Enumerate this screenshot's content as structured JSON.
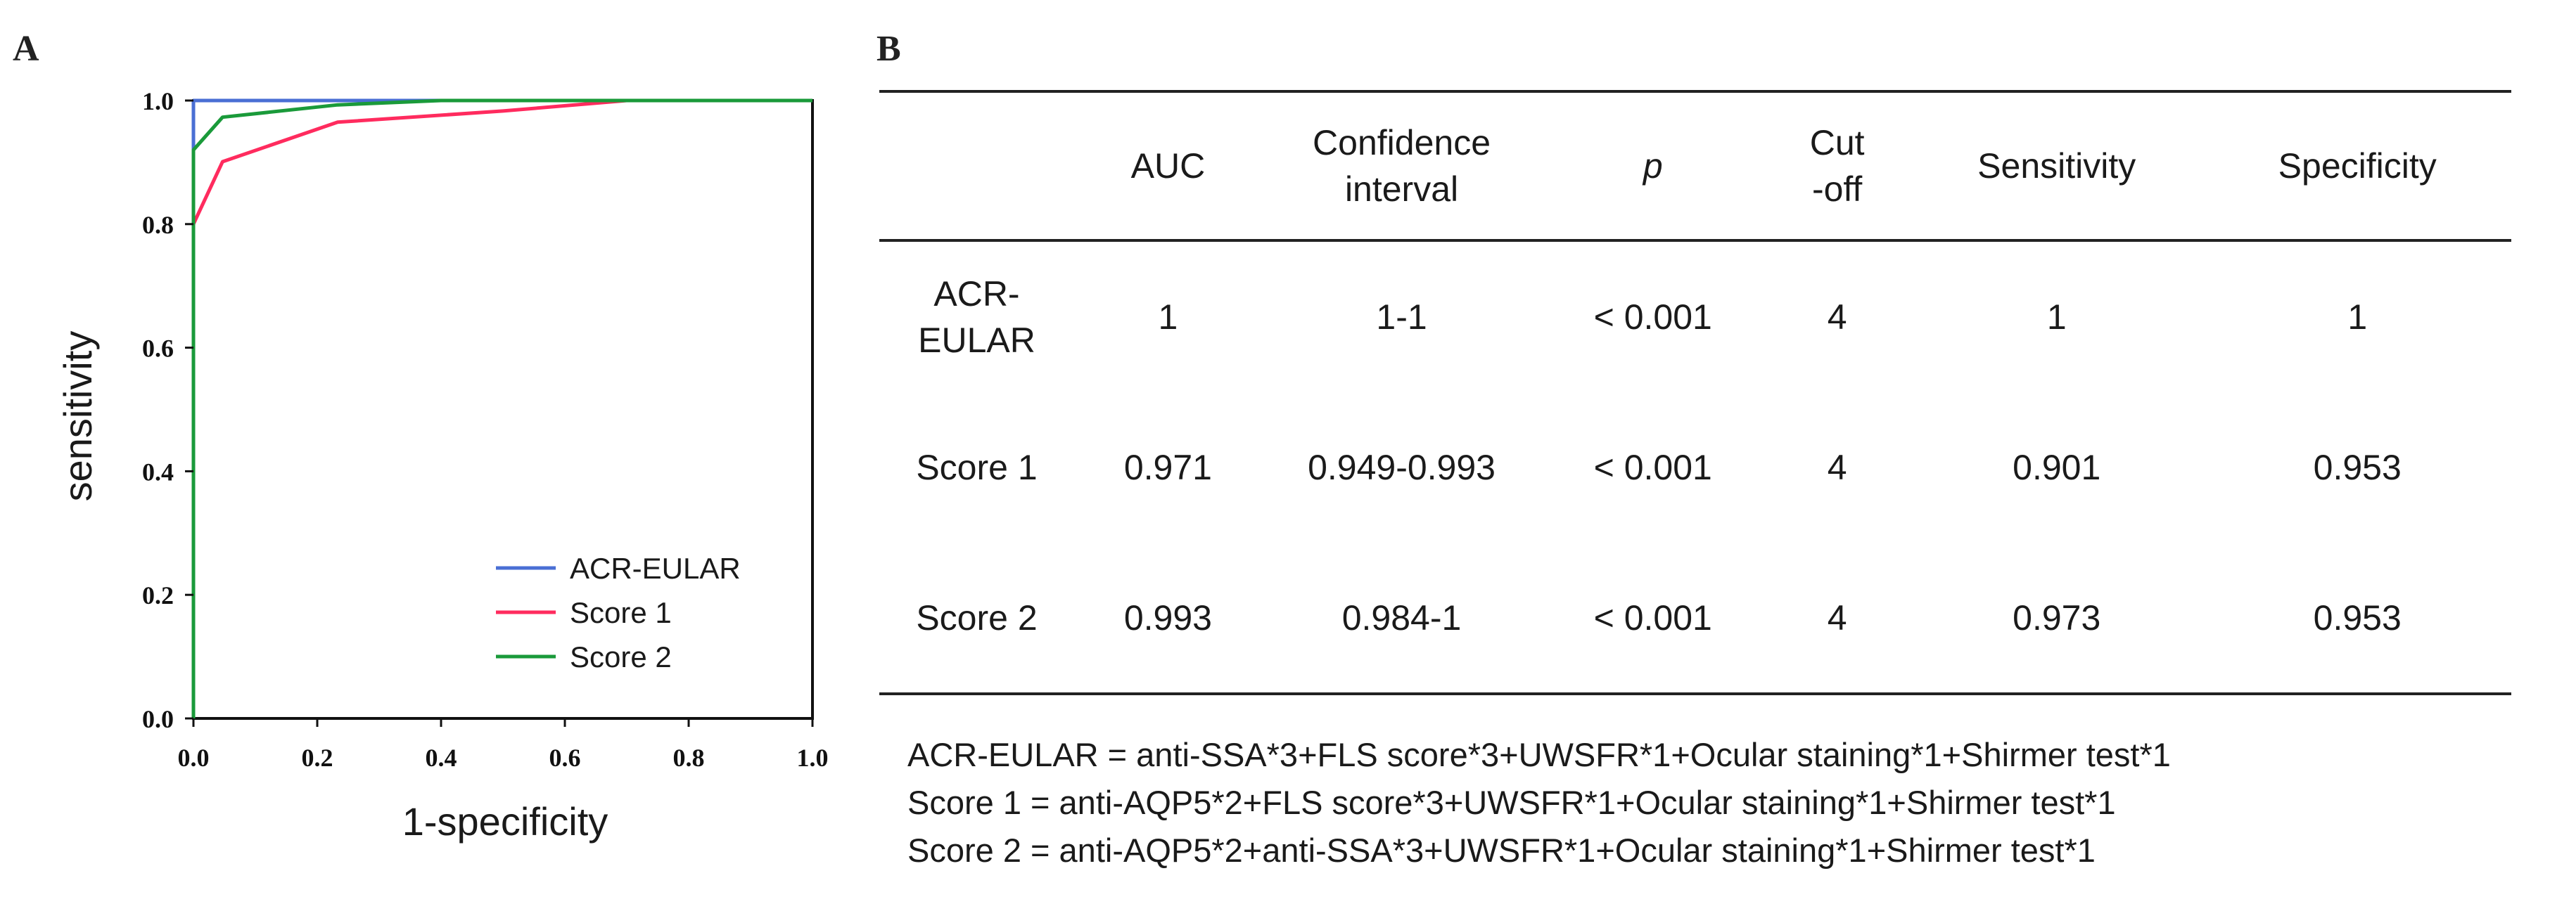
{
  "panel_a": {
    "letter": "A",
    "chart_data": {
      "type": "line",
      "title": "",
      "xlabel": "1-specificity",
      "ylabel": "sensitivity",
      "xlim": [
        0,
        1
      ],
      "ylim": [
        0,
        1
      ],
      "xticks": [
        "0.0",
        "0.2",
        "0.4",
        "0.6",
        "0.8",
        "1.0"
      ],
      "yticks": [
        "0.0",
        "0.2",
        "0.4",
        "0.6",
        "0.8",
        "1.0"
      ],
      "legend_position": "bottom-right",
      "grid": false,
      "series": [
        {
          "name": "ACR-EULAR",
          "color": "#4a6fd4",
          "x": [
            0,
            0,
            1
          ],
          "y": [
            0,
            1,
            1
          ]
        },
        {
          "name": "Score 1",
          "color": "#ff2b5e",
          "x": [
            0,
            0,
            0.047,
            0.233,
            0.5,
            0.7,
            1
          ],
          "y": [
            0,
            0.8,
            0.901,
            0.965,
            0.983,
            1,
            1
          ]
        },
        {
          "name": "Score 2",
          "color": "#1a9a3a",
          "x": [
            0,
            0,
            0.047,
            0.233,
            0.4,
            1
          ],
          "y": [
            0,
            0.92,
            0.973,
            0.993,
            1,
            1
          ]
        }
      ]
    }
  },
  "panel_b": {
    "letter": "B",
    "headers": [
      "",
      "AUC",
      "Confidence\ninterval",
      "p",
      "Cut\n-off",
      "Sensitivity",
      "Specificity"
    ],
    "rows": [
      [
        "ACR-\nEULAR",
        "1",
        "1-1",
        "< 0.001",
        "4",
        "1",
        "1"
      ],
      [
        "Score 1",
        "0.971",
        "0.949-0.993",
        "< 0.001",
        "4",
        "0.901",
        "0.953"
      ],
      [
        "Score 2",
        "0.993",
        "0.984-1",
        "< 0.001",
        "4",
        "0.973",
        "0.953"
      ]
    ],
    "footnotes": [
      "ACR-EULAR = anti-SSA*3+FLS score*3+UWSFR*1+Ocular staining*1+Shirmer test*1",
      "Score 1 = anti-AQP5*2+FLS score*3+UWSFR*1+Ocular staining*1+Shirmer test*1",
      "Score 2 = anti-AQP5*2+anti-SSA*3+UWSFR*1+Ocular staining*1+Shirmer test*1"
    ]
  }
}
